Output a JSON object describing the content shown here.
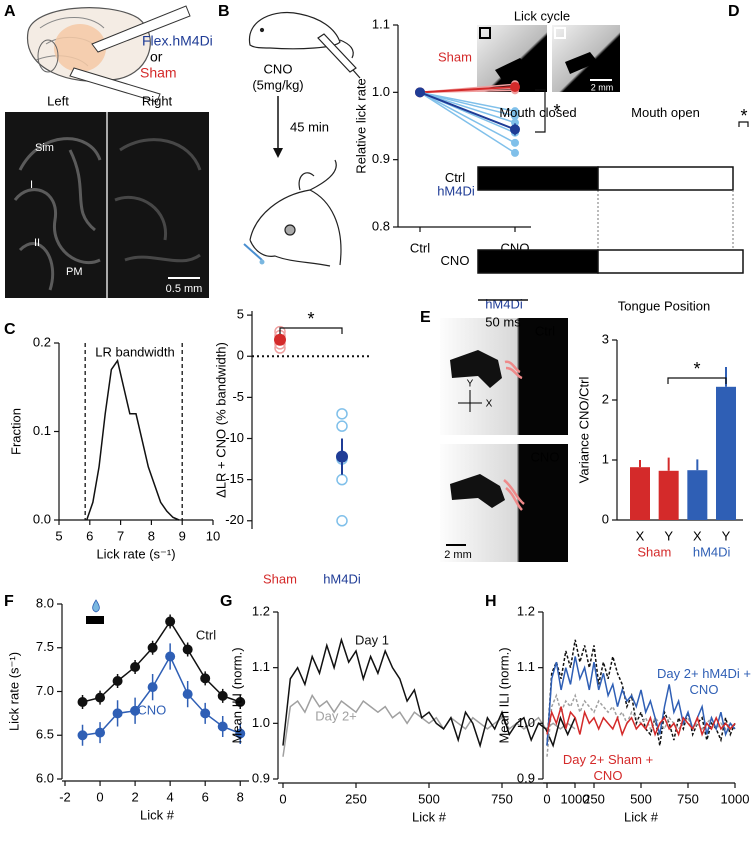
{
  "panel_labels": [
    "A",
    "B",
    "C",
    "D",
    "E",
    "F",
    "G",
    "H"
  ],
  "panel_a": {
    "construct": "Flex.hM4Di",
    "or": "or",
    "sham": "Sham",
    "left": "Left",
    "right": "Right",
    "regions": [
      "Sim",
      "I",
      "II",
      "PM"
    ],
    "scale": "0.5 mm"
  },
  "panel_b": {
    "drug": "CNO",
    "dose": "(5mg/kg)",
    "delay": "45 min"
  },
  "panel_d_images": {
    "title": "Lick cycle",
    "scale": "2 mm"
  },
  "panel_e_images": {
    "group": "hM4Di",
    "top": "Ctrl",
    "bottom": "CNO",
    "y": "Y",
    "x": "X",
    "scale": "2 mm"
  },
  "chart_data": [
    {
      "type": "line",
      "y_label": "Relative lick rate",
      "categories": [
        "Ctrl",
        "CNO"
      ],
      "ylim": [
        0.8,
        1.1
      ],
      "yticks": [
        0.8,
        0.9,
        {
          "value": 1,
          "label": "1.0"
        },
        1.1
      ],
      "series": [
        {
          "color": "#f0a0a0",
          "values": [
            1,
            1.012
          ],
          "markers": true
        },
        {
          "color": "#f0a0a0",
          "values": [
            1,
            1.006
          ],
          "markers": true
        },
        {
          "color": "#f0a0a0",
          "values": [
            1,
            1.003
          ],
          "markers": true
        },
        {
          "name": "Sham",
          "color": "#d42a2a",
          "values": [
            1,
            1.008
          ],
          "errors": [
            0,
            0.006
          ],
          "markers": true
        },
        {
          "color": "#80c0ea",
          "values": [
            1,
            0.972
          ],
          "markers": true
        },
        {
          "color": "#80c0ea",
          "values": [
            1,
            0.965
          ],
          "markers": true
        },
        {
          "color": "#80c0ea",
          "values": [
            1,
            0.955
          ],
          "markers": true
        },
        {
          "color": "#80c0ea",
          "values": [
            1,
            0.94
          ],
          "markers": true
        },
        {
          "color": "#80c0ea",
          "values": [
            1,
            0.925
          ],
          "markers": true
        },
        {
          "color": "#80c0ea",
          "values": [
            1,
            0.91
          ],
          "markers": true
        },
        {
          "name": "hM4Di",
          "color": "#1f3c96",
          "values": [
            1,
            0.945
          ],
          "errors": [
            0,
            0.009
          ],
          "markers": true
        }
      ],
      "annotations": [
        "*"
      ]
    },
    {
      "type": "line",
      "x_label": "Lick rate (s⁻¹)",
      "y_label": "Fraction",
      "x": [
        5.9,
        6.1,
        6.3,
        6.5,
        6.7,
        6.9,
        7.1,
        7.3,
        7.5,
        7.7,
        7.9,
        8.1,
        8.3,
        8.5,
        8.7,
        8.9
      ],
      "xlim": [
        5,
        10
      ],
      "xticks": [
        5,
        6,
        7,
        8,
        9,
        10
      ],
      "ylim": [
        0,
        0.2
      ],
      "yticks": [
        {
          "value": 0,
          "label": "0.0"
        },
        0.1,
        0.2
      ],
      "series": [
        {
          "color": "#111111",
          "values": [
            0,
            0.02,
            0.06,
            0.12,
            0.17,
            0.18,
            0.15,
            0.12,
            0.12,
            0.09,
            0.06,
            0.04,
            0.02,
            0.01,
            0.003,
            0
          ]
        }
      ],
      "bandwidth": [
        5.85,
        9.0
      ],
      "annotations": [
        "LR bandwidth"
      ]
    },
    {
      "type": "dot",
      "y_label": "ΔLR + CNO (% bandwidth)",
      "categories": [
        "Sham",
        "hM4Di"
      ],
      "ylim": [
        -21,
        5.5
      ],
      "yticks": [
        -20,
        -15,
        -10,
        -5,
        0,
        5
      ],
      "reference_line": 0,
      "points": [
        [
          2.5,
          1.5,
          1.0,
          3.0
        ],
        [
          -7,
          -8.5,
          -12.5,
          -15,
          -20
        ]
      ],
      "means": [
        2,
        -12.2
      ],
      "errors": [
        0.5,
        2.2
      ],
      "colors": [
        "#d42a2a",
        "#1f3c96"
      ],
      "point_colors": [
        "#f0a0a0",
        "#80c0ea"
      ],
      "annotations": [
        "*"
      ]
    },
    {
      "type": "timeline",
      "categories": [
        "Ctrl",
        "CNO"
      ],
      "series": [
        {
          "name": "Mouth closed",
          "color": "#000000",
          "values": [
            120,
            120
          ]
        },
        {
          "name": "Mouth open",
          "color": "#ffffff",
          "values": [
            135,
            145
          ]
        }
      ],
      "scale_bar": 50,
      "scale_label": "50 ms",
      "annotations": [
        "*"
      ]
    },
    {
      "type": "bar",
      "title": "Tongue Position",
      "y_label": "Variance CNO/Ctrl",
      "categories": [
        "X",
        "Y",
        "X",
        "Y"
      ],
      "groups": [
        "Sham",
        "hM4Di"
      ],
      "values": [
        0.88,
        0.82,
        0.83,
        2.22
      ],
      "errors": [
        0.12,
        0.22,
        0.18,
        0.33
      ],
      "colors": [
        "#d42a2a",
        "#d42a2a",
        "#2f5fb5",
        "#2f5fb5"
      ],
      "group_colors": [
        "#d42a2a",
        "#2f5fb5"
      ],
      "ylim": [
        0,
        3
      ],
      "yticks": [
        0,
        1,
        2,
        3
      ],
      "annotations": [
        "*"
      ]
    },
    {
      "type": "line",
      "x_label": "Lick #",
      "y_label": "Lick rate (s⁻¹)",
      "x": [
        -1,
        0,
        1,
        2,
        3,
        4,
        5,
        6,
        7,
        8
      ],
      "xlim": [
        -2,
        8.5
      ],
      "xticks": [
        -2,
        0,
        2,
        4,
        6,
        8
      ],
      "ylim": [
        6,
        8
      ],
      "yticks": [
        {
          "value": 6,
          "label": "6.0"
        },
        6.5,
        {
          "value": 7,
          "label": "7.0"
        },
        7.5,
        {
          "value": 8,
          "label": "8.0"
        }
      ],
      "series": [
        {
          "name": "Ctrl",
          "color": "#111111",
          "markers": true,
          "values": [
            6.88,
            6.93,
            7.12,
            7.28,
            7.5,
            7.8,
            7.48,
            7.15,
            6.95,
            6.88
          ],
          "errors": [
            0.08,
            0.08,
            0.08,
            0.08,
            0.08,
            0.08,
            0.08,
            0.08,
            0.08,
            0.08
          ]
        },
        {
          "name": "+CNO",
          "color": "#2f5fb5",
          "markers": true,
          "values": [
            6.5,
            6.53,
            6.75,
            6.78,
            7.05,
            7.4,
            6.97,
            6.75,
            6.6,
            6.52
          ],
          "errors": [
            0.12,
            0.12,
            0.15,
            0.15,
            0.15,
            0.15,
            0.15,
            0.12,
            0.12,
            0.12
          ]
        }
      ]
    },
    {
      "type": "line",
      "x_label": "Lick #",
      "y_label": "Mean ILI (norm.)",
      "x": [
        0,
        25,
        50,
        75,
        100,
        125,
        150,
        175,
        200,
        225,
        250,
        275,
        300,
        325,
        350,
        375,
        400,
        425,
        450,
        475,
        500,
        525,
        550,
        575,
        600,
        625,
        650,
        675,
        700,
        725,
        750,
        775,
        800,
        825,
        850,
        875,
        900,
        925,
        950,
        975,
        1000
      ],
      "xlim": [
        0,
        1000
      ],
      "xticks": [
        0,
        250,
        500,
        750,
        1000
      ],
      "ylim": [
        0.9,
        1.2
      ],
      "yticks": [
        0.9,
        {
          "value": 1,
          "label": "1.0"
        },
        1.1,
        1.2
      ],
      "series": [
        {
          "name": "Day 2+",
          "color": "#a0a0a0",
          "values": [
            0.94,
            1.03,
            1.04,
            1.02,
            1.05,
            1.03,
            1.04,
            1.02,
            1.04,
            1.03,
            1.02,
            1.04,
            1.03,
            1.02,
            1.03,
            1.01,
            1.02,
            1.0,
            1.02,
            1.01,
            1.0,
            1.01,
            0.99,
            1.01,
            1.0,
            0.99,
            1.01,
            1.0,
            0.99,
            1.0,
            1.01,
            0.99,
            1.0,
            0.99,
            1.0,
            1.01,
            0.99,
            1.0,
            0.99,
            1.0,
            0.99
          ]
        },
        {
          "name": "Day 1",
          "color": "#111111",
          "values": [
            0.96,
            1.08,
            1.1,
            1.07,
            1.12,
            1.09,
            1.14,
            1.1,
            1.15,
            1.11,
            1.13,
            1.08,
            1.12,
            1.09,
            1.13,
            1.1,
            1.08,
            1.04,
            1.06,
            1.01,
            1.02,
            1.0,
            0.99,
            1.01,
            0.97,
            1.02,
            1.0,
            0.96,
            1.01,
            0.99,
            1.02,
            0.98,
            1.0,
            1.01,
            0.97,
            1.0,
            0.99,
            0.96,
            1.01,
            0.98,
            1.01
          ]
        }
      ]
    },
    {
      "type": "line",
      "x_label": "Lick #",
      "y_label": "Mean ILI (norm.)",
      "x": [
        0,
        25,
        50,
        75,
        100,
        125,
        150,
        175,
        200,
        225,
        250,
        275,
        300,
        325,
        350,
        375,
        400,
        425,
        450,
        475,
        500,
        525,
        550,
        575,
        600,
        625,
        650,
        675,
        700,
        725,
        750,
        775,
        800,
        825,
        850,
        875,
        900,
        925,
        950,
        975,
        1000
      ],
      "xlim": [
        0,
        1000
      ],
      "xticks": [
        0,
        250,
        500,
        750,
        1000
      ],
      "ylim": [
        0.9,
        1.2
      ],
      "yticks": [
        0.9,
        {
          "value": 1,
          "label": "1.0"
        },
        1.1,
        1.2
      ],
      "series": [
        {
          "color": "#111111",
          "dashed": true,
          "values": [
            0.96,
            1.09,
            1.11,
            1.08,
            1.13,
            1.1,
            1.15,
            1.11,
            1.14,
            1.1,
            1.14,
            1.07,
            1.11,
            1.08,
            1.12,
            1.09,
            1.07,
            1.03,
            1.05,
            1.0,
            1.02,
            0.99,
            0.98,
            1.01,
            0.96,
            1.02,
            1.0,
            0.97,
            1.01,
            0.99,
            1.02,
            0.98,
            1.0,
            1.01,
            0.97,
            1.0,
            0.99,
            0.97,
            1.01,
            0.98,
            1.0
          ]
        },
        {
          "color": "#a0a0a0",
          "dashed": true,
          "values": [
            0.94,
            1.03,
            1.05,
            1.02,
            1.04,
            1.03,
            1.05,
            1.02,
            1.04,
            1.03,
            1.02,
            1.04,
            1.03,
            1.02,
            1.03,
            1.01,
            1.02,
            1.0,
            1.02,
            1.01,
            1.0,
            1.01,
            0.99,
            1.01,
            1.0,
            0.99,
            1.01,
            1.0,
            0.99,
            1.0,
            1.01,
            0.99,
            1.0,
            0.99,
            1.0,
            1.01,
            0.99,
            1.0,
            0.99,
            1.0,
            0.99
          ]
        },
        {
          "name": "Day 2+ hM4Di + CNO",
          "color": "#2f5fb5",
          "values": [
            0.96,
            1.08,
            1.11,
            1.06,
            1.1,
            1.07,
            1.12,
            1.08,
            1.1,
            1.06,
            1.11,
            1.06,
            1.09,
            1.05,
            1.07,
            1.03,
            1.06,
            1.04,
            1.05,
            1.03,
            1.06,
            1.02,
            1.04,
            1.01,
            0.98,
            1.03,
            1.07,
            1.02,
            1.04,
            1.0,
            1.02,
            0.99,
            1.01,
            1.03,
            0.98,
            1.01,
            0.99,
            1.02,
            0.98,
            1.0,
            0.99
          ]
        },
        {
          "name": "Day 2+ Sham + CNO",
          "color": "#d42a2a",
          "values": [
            0.98,
            1.02,
            1.0,
            1.03,
            0.99,
            1.02,
            1.01,
            0.98,
            1.02,
            1.0,
            1.01,
            0.99,
            1.01,
            1.0,
            0.99,
            1.01,
            0.98,
            1.0,
            1.01,
            0.99,
            1.0,
            0.99,
            1.01,
            0.98,
            1.0,
            1.01,
            0.99,
            1.0,
            0.98,
            1.01,
            1.0,
            0.99,
            1.01,
            0.98,
            1.0,
            0.99,
            1.01,
            0.99,
            1.0,
            0.99,
            1.0
          ]
        }
      ]
    }
  ]
}
